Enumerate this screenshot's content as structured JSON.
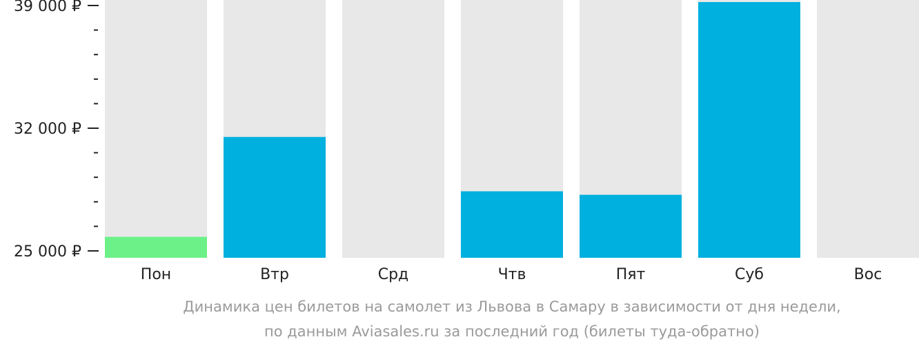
{
  "chart_data": {
    "type": "bar",
    "categories": [
      "Пон",
      "Втр",
      "Срд",
      "Чтв",
      "Пят",
      "Суб",
      "Вос"
    ],
    "values": [
      25800,
      31500,
      null,
      28400,
      28200,
      39800,
      null
    ],
    "ylim": [
      25000,
      39000
    ],
    "y_ticks": [
      {
        "value": 39000,
        "label": "39 000 ₽"
      },
      {
        "value": 32000,
        "label": "32 000 ₽"
      },
      {
        "value": 25000,
        "label": "25 000 ₽"
      }
    ],
    "y_minor_tick_step": 1400,
    "highlight_category": "Пон",
    "colors": {
      "bar": "#00b0de",
      "highlight": "#6bf188",
      "background_bar": "#e8e8e8",
      "axis": "#222222"
    },
    "caption_lines": [
      "Динамика цен билетов на самолет из Львова в Самару в зависимости от дня недели,",
      "по данным Aviasales.ru за последний год (билеты туда-обратно)"
    ]
  }
}
